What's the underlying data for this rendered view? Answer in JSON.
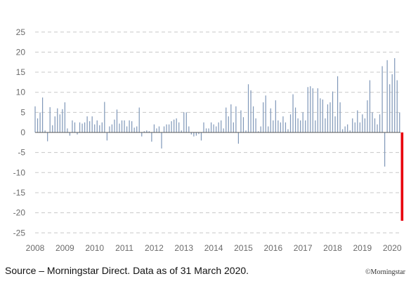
{
  "chart_data": {
    "type": "bar",
    "title": "",
    "xlabel": "",
    "ylabel": "",
    "ylim": [
      -27,
      27
    ],
    "y_ticks": [
      25,
      20,
      15,
      10,
      5,
      0,
      -5,
      -10,
      -15,
      -20,
      -25
    ],
    "x_ticks": [
      "2008",
      "2009",
      "2010",
      "2011",
      "2012",
      "2013",
      "2014",
      "2015",
      "2016",
      "2017",
      "2018",
      "2019",
      "2020"
    ],
    "x_range": [
      "2008-01",
      "2020-04"
    ],
    "grid": "horizontal dashed",
    "bar_color": "#7f97b8",
    "highlight_color": "#e8000d",
    "series": [
      {
        "values": [
          {
            "x": "2008-01",
            "y": 6.5
          },
          {
            "x": "2008-02",
            "y": 3.5
          },
          {
            "x": "2008-03",
            "y": 5.0
          },
          {
            "x": "2008-04",
            "y": 8.7
          },
          {
            "x": "2008-05",
            "y": 0.5
          },
          {
            "x": "2008-06",
            "y": -2.2
          },
          {
            "x": "2008-07",
            "y": 6.3
          },
          {
            "x": "2008-08",
            "y": 1.8
          },
          {
            "x": "2008-09",
            "y": 4.0
          },
          {
            "x": "2008-10",
            "y": 6.0
          },
          {
            "x": "2008-11",
            "y": 4.5
          },
          {
            "x": "2008-12",
            "y": 5.8
          },
          {
            "x": "2009-01",
            "y": 7.5
          },
          {
            "x": "2009-02",
            "y": 1.0
          },
          {
            "x": "2009-03",
            "y": -0.8
          },
          {
            "x": "2009-04",
            "y": 3.0
          },
          {
            "x": "2009-05",
            "y": 2.5
          },
          {
            "x": "2009-06",
            "y": -0.5
          },
          {
            "x": "2009-07",
            "y": 2.5
          },
          {
            "x": "2009-08",
            "y": 2.2
          },
          {
            "x": "2009-09",
            "y": 2.5
          },
          {
            "x": "2009-10",
            "y": 4.0
          },
          {
            "x": "2009-11",
            "y": 2.8
          },
          {
            "x": "2009-12",
            "y": 4.0
          },
          {
            "x": "2010-01",
            "y": 2.0
          },
          {
            "x": "2010-02",
            "y": 3.0
          },
          {
            "x": "2010-03",
            "y": 1.8
          },
          {
            "x": "2010-04",
            "y": 2.5
          },
          {
            "x": "2010-05",
            "y": 7.6
          },
          {
            "x": "2010-06",
            "y": -2.0
          },
          {
            "x": "2010-07",
            "y": 1.5
          },
          {
            "x": "2010-08",
            "y": 2.0
          },
          {
            "x": "2010-09",
            "y": 3.2
          },
          {
            "x": "2010-10",
            "y": 5.7
          },
          {
            "x": "2010-11",
            "y": 2.2
          },
          {
            "x": "2010-12",
            "y": 3.0
          },
          {
            "x": "2011-01",
            "y": 3.0
          },
          {
            "x": "2011-02",
            "y": 1.5
          },
          {
            "x": "2011-03",
            "y": 3.0
          },
          {
            "x": "2011-04",
            "y": 2.8
          },
          {
            "x": "2011-05",
            "y": 1.2
          },
          {
            "x": "2011-06",
            "y": 1.5
          },
          {
            "x": "2011-07",
            "y": 6.2
          },
          {
            "x": "2011-08",
            "y": -1.0
          },
          {
            "x": "2011-09",
            "y": 0.3
          },
          {
            "x": "2011-10",
            "y": 0.5
          },
          {
            "x": "2011-11",
            "y": 0.3
          },
          {
            "x": "2011-12",
            "y": -2.3
          },
          {
            "x": "2012-01",
            "y": 2.0
          },
          {
            "x": "2012-02",
            "y": 1.0
          },
          {
            "x": "2012-03",
            "y": 1.5
          },
          {
            "x": "2012-04",
            "y": -4.0
          },
          {
            "x": "2012-05",
            "y": 1.5
          },
          {
            "x": "2012-06",
            "y": 2.0
          },
          {
            "x": "2012-07",
            "y": 2.0
          },
          {
            "x": "2012-08",
            "y": 2.8
          },
          {
            "x": "2012-09",
            "y": 3.2
          },
          {
            "x": "2012-10",
            "y": 3.5
          },
          {
            "x": "2012-11",
            "y": 2.5
          },
          {
            "x": "2012-12",
            "y": 0.5
          },
          {
            "x": "2013-01",
            "y": 5.0
          },
          {
            "x": "2013-02",
            "y": 5.0
          },
          {
            "x": "2013-03",
            "y": 1.5
          },
          {
            "x": "2013-04",
            "y": -0.5
          },
          {
            "x": "2013-05",
            "y": -1.0
          },
          {
            "x": "2013-06",
            "y": -0.8
          },
          {
            "x": "2013-07",
            "y": -0.4
          },
          {
            "x": "2013-08",
            "y": -2.0
          },
          {
            "x": "2013-09",
            "y": 2.5
          },
          {
            "x": "2013-10",
            "y": 1.0
          },
          {
            "x": "2013-11",
            "y": 1.0
          },
          {
            "x": "2013-12",
            "y": 2.5
          },
          {
            "x": "2014-01",
            "y": 2.0
          },
          {
            "x": "2014-02",
            "y": 1.5
          },
          {
            "x": "2014-03",
            "y": 2.5
          },
          {
            "x": "2014-04",
            "y": 3.0
          },
          {
            "x": "2014-05",
            "y": 1.0
          },
          {
            "x": "2014-06",
            "y": 6.2
          },
          {
            "x": "2014-07",
            "y": 4.0
          },
          {
            "x": "2014-08",
            "y": 7.0
          },
          {
            "x": "2014-09",
            "y": 2.5
          },
          {
            "x": "2014-10",
            "y": 6.5
          },
          {
            "x": "2014-11",
            "y": -2.8
          },
          {
            "x": "2014-12",
            "y": 5.5
          },
          {
            "x": "2015-01",
            "y": 3.8
          },
          {
            "x": "2015-02",
            "y": 0.5
          },
          {
            "x": "2015-03",
            "y": 12.0
          },
          {
            "x": "2015-04",
            "y": 10.5
          },
          {
            "x": "2015-05",
            "y": 6.5
          },
          {
            "x": "2015-06",
            "y": 3.5
          },
          {
            "x": "2015-07",
            "y": 0.3
          },
          {
            "x": "2015-08",
            "y": 1.5
          },
          {
            "x": "2015-09",
            "y": 7.5
          },
          {
            "x": "2015-10",
            "y": 9.2
          },
          {
            "x": "2015-11",
            "y": 1.5
          },
          {
            "x": "2015-12",
            "y": 6.0
          },
          {
            "x": "2016-01",
            "y": 3.0
          },
          {
            "x": "2016-02",
            "y": 8.0
          },
          {
            "x": "2016-03",
            "y": 3.0
          },
          {
            "x": "2016-04",
            "y": 2.5
          },
          {
            "x": "2016-05",
            "y": 4.0
          },
          {
            "x": "2016-06",
            "y": 2.5
          },
          {
            "x": "2016-07",
            "y": 0.8
          },
          {
            "x": "2016-08",
            "y": 4.5
          },
          {
            "x": "2016-09",
            "y": 9.5
          },
          {
            "x": "2016-10",
            "y": 6.2
          },
          {
            "x": "2016-11",
            "y": 3.5
          },
          {
            "x": "2016-12",
            "y": 3.0
          },
          {
            "x": "2017-01",
            "y": 5.0
          },
          {
            "x": "2017-02",
            "y": 3.0
          },
          {
            "x": "2017-03",
            "y": 11.3
          },
          {
            "x": "2017-04",
            "y": 11.5
          },
          {
            "x": "2017-05",
            "y": 11.0
          },
          {
            "x": "2017-06",
            "y": 3.0
          },
          {
            "x": "2017-07",
            "y": 11.0
          },
          {
            "x": "2017-08",
            "y": 8.5
          },
          {
            "x": "2017-09",
            "y": 8.2
          },
          {
            "x": "2017-10",
            "y": 3.5
          },
          {
            "x": "2017-11",
            "y": 7.0
          },
          {
            "x": "2017-12",
            "y": 7.5
          },
          {
            "x": "2018-01",
            "y": 10.2
          },
          {
            "x": "2018-02",
            "y": 4.0
          },
          {
            "x": "2018-03",
            "y": 14.0
          },
          {
            "x": "2018-04",
            "y": 7.5
          },
          {
            "x": "2018-05",
            "y": 0.8
          },
          {
            "x": "2018-06",
            "y": 1.5
          },
          {
            "x": "2018-07",
            "y": 2.0
          },
          {
            "x": "2018-08",
            "y": 0.5
          },
          {
            "x": "2018-09",
            "y": 3.5
          },
          {
            "x": "2018-10",
            "y": 2.5
          },
          {
            "x": "2018-11",
            "y": 5.5
          },
          {
            "x": "2018-12",
            "y": 2.5
          },
          {
            "x": "2019-01",
            "y": 4.5
          },
          {
            "x": "2019-02",
            "y": 3.5
          },
          {
            "x": "2019-03",
            "y": 8.0
          },
          {
            "x": "2019-04",
            "y": 13.0
          },
          {
            "x": "2019-05",
            "y": 5.0
          },
          {
            "x": "2019-06",
            "y": 3.5
          },
          {
            "x": "2019-07",
            "y": 2.0
          },
          {
            "x": "2019-08",
            "y": 4.5
          },
          {
            "x": "2019-09",
            "y": 16.5
          },
          {
            "x": "2019-10",
            "y": -8.5
          },
          {
            "x": "2019-11",
            "y": 18.0
          },
          {
            "x": "2019-12",
            "y": 12.0
          },
          {
            "x": "2020-01",
            "y": 14.5
          },
          {
            "x": "2020-02",
            "y": 18.5
          },
          {
            "x": "2020-03",
            "y": 13.0
          },
          {
            "x": "2020-04",
            "y": 5.0
          }
        ]
      },
      {
        "highlight": true,
        "values": [
          {
            "x": "2020-05",
            "y": -22.0
          }
        ]
      }
    ]
  },
  "footer": {
    "source": "Source – Morningstar Direct.  Data as of 31 March 2020.",
    "credit": "©Morningstar"
  }
}
